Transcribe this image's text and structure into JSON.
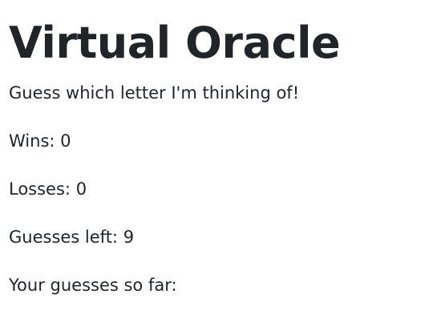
{
  "title": "Virtual Oracle",
  "instructions": "Guess which letter I'm thinking of!",
  "stats": {
    "wins_label": "Wins:",
    "wins_value": "0",
    "losses_label": "Losses:",
    "losses_value": "0",
    "guesses_left_label": "Guesses left:",
    "guesses_left_value": "9",
    "guesses_so_far_label": "Your guesses so far:",
    "guesses_so_far_value": ""
  },
  "colors": {
    "text": "#212529",
    "background": "#ffffff"
  }
}
